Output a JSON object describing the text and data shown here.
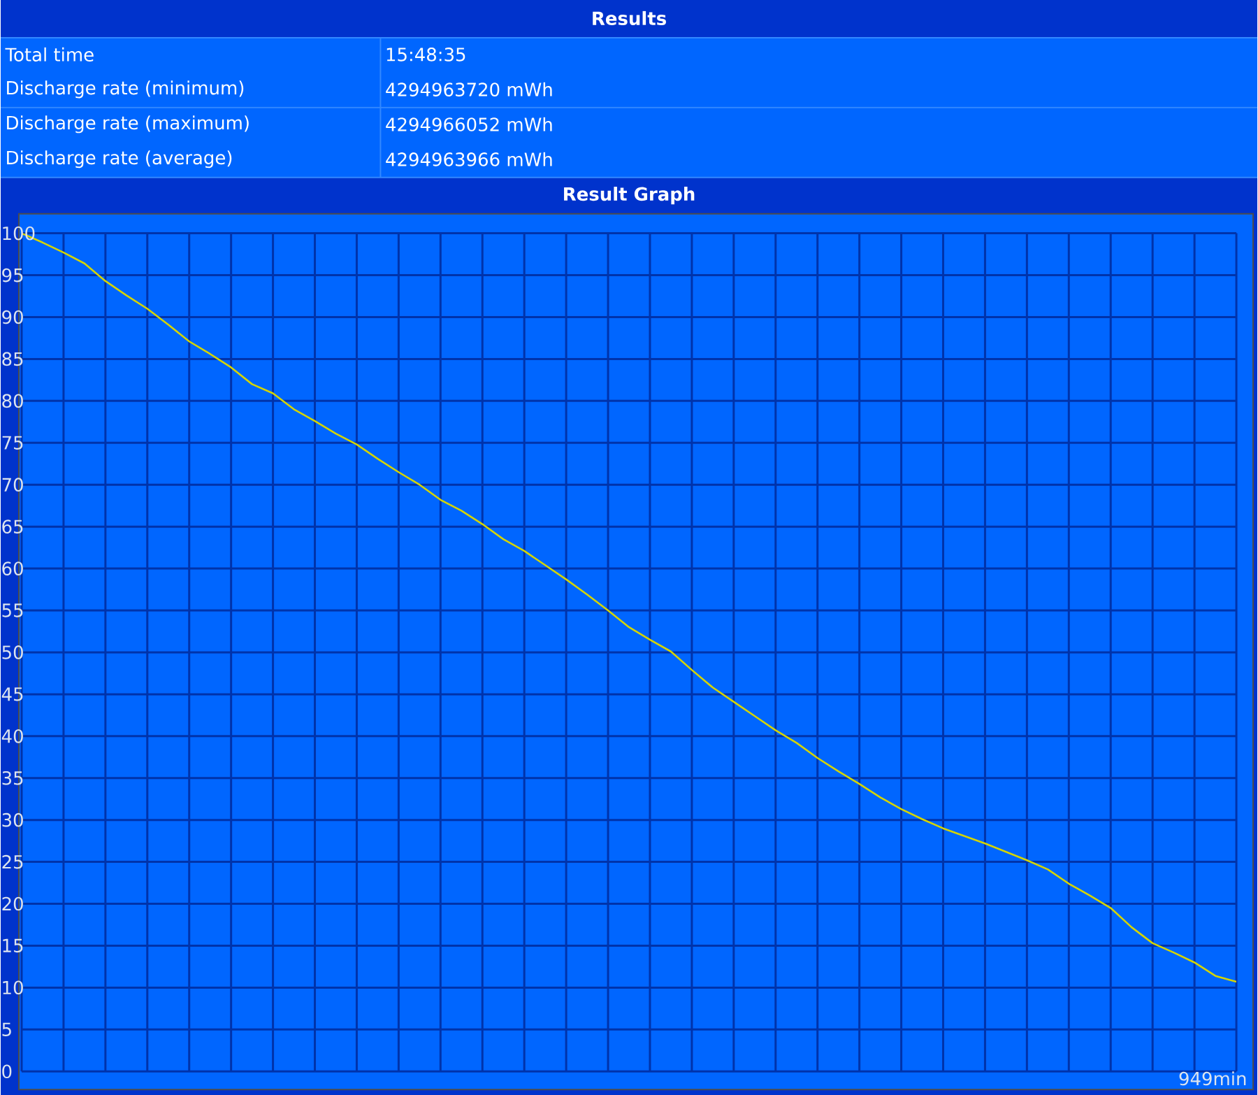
{
  "chart_data": {
    "type": "line",
    "title": "Results",
    "subtitle": "Result Graph",
    "annotations": [
      "Total time",
      "15:48:35",
      "Discharge rate (minimum)",
      "4294963720 mWh",
      "Discharge rate (maximum)",
      "4294966052 mWh",
      "Discharge rate (average)",
      "4294963966 mWh",
      "949min"
    ],
    "categories": [
      null,
      null,
      null,
      null,
      null,
      null,
      null,
      null,
      null,
      null,
      null,
      null,
      null,
      null,
      null,
      null,
      null,
      null,
      null,
      null,
      null,
      null,
      null,
      null,
      null,
      null,
      null,
      null,
      null,
      null,
      null,
      null,
      null,
      null,
      null,
      null,
      null,
      null,
      null,
      null,
      null,
      null,
      null,
      null,
      null,
      null,
      null,
      null,
      null,
      null,
      null,
      null,
      null,
      null,
      null,
      null,
      null,
      null,
      null
    ],
    "series": [
      {
        "color": "#d4d400",
        "values": [
          100,
          98.9,
          97.7,
          96.4,
          94.3,
          92.6,
          91.0,
          89.1,
          87.1,
          85.6,
          84.0,
          82,
          80.9,
          79.0,
          77.6,
          76.1,
          74.8,
          73.1,
          71.5,
          70,
          68.2,
          66.9,
          65.3,
          63.5,
          62.1,
          60.4,
          58.7,
          56.9,
          55.0,
          53.0,
          51.5,
          50.1,
          47.9,
          45.8,
          44.1,
          42.4,
          40.7,
          39.2,
          37.4,
          35.8,
          34.3,
          32.7,
          31.3,
          30.1,
          29.0,
          28.1,
          27.2,
          26.2,
          25.2,
          24.1,
          22.4,
          21.0,
          19.5,
          17.2,
          15.3,
          14.2,
          13.0,
          11.4,
          10.7
        ]
      }
    ],
    "ylim": [
      0,
      100
    ],
    "yticks": [
      0,
      5,
      10,
      15,
      20,
      25,
      30,
      35,
      40,
      45,
      50,
      55,
      60,
      65,
      70,
      75,
      80,
      85,
      90,
      95,
      100
    ],
    "grid": true
  }
}
